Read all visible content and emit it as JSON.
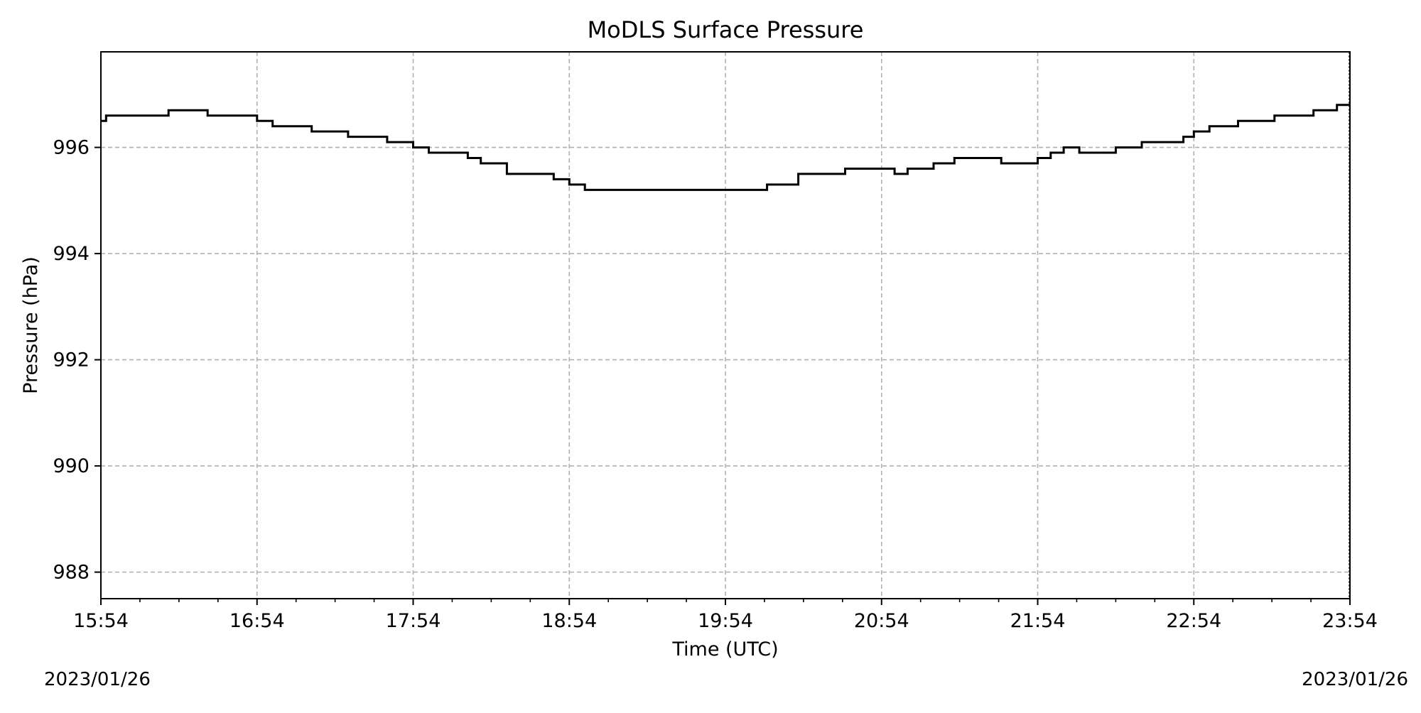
{
  "chart_data": {
    "type": "line",
    "title": "MoDLS Surface Pressure",
    "xlabel": "Time (UTC)",
    "ylabel": "Pressure (hPa)",
    "x_unit": "UTC time of day",
    "xlim": [
      "15:54",
      "23:54"
    ],
    "ylim": [
      987.5,
      997.8
    ],
    "x_ticks": [
      "15:54",
      "16:54",
      "17:54",
      "18:54",
      "19:54",
      "20:54",
      "21:54",
      "22:54",
      "23:54"
    ],
    "y_ticks": [
      988,
      990,
      992,
      994,
      996
    ],
    "grid": true,
    "line_style": "step",
    "line_color": "#000000",
    "grid_color": "#b0b0b0",
    "series": [
      {
        "x": [
          "15:54",
          "15:56",
          "16:05",
          "16:20",
          "16:35",
          "16:54",
          "17:00",
          "17:08",
          "17:15",
          "17:29",
          "17:44",
          "17:54",
          "18:00",
          "18:08",
          "18:15",
          "18:20",
          "18:30",
          "18:48",
          "18:54",
          "19:00",
          "19:15",
          "19:30",
          "19:54",
          "20:10",
          "20:22",
          "20:30",
          "20:40",
          "20:54",
          "20:59",
          "21:04",
          "21:14",
          "21:22",
          "21:30",
          "21:40",
          "21:49",
          "21:54",
          "21:59",
          "22:04",
          "22:10",
          "22:24",
          "22:34",
          "22:50",
          "22:54",
          "23:00",
          "23:11",
          "23:20",
          "23:25",
          "23:35",
          "23:40",
          "23:49",
          "23:54"
        ],
        "y": [
          996.5,
          996.6,
          996.6,
          996.7,
          996.6,
          996.5,
          996.4,
          996.4,
          996.3,
          996.2,
          996.1,
          996.0,
          995.9,
          995.9,
          995.8,
          995.7,
          995.5,
          995.4,
          995.3,
          995.2,
          995.2,
          995.2,
          995.2,
          995.3,
          995.5,
          995.5,
          995.6,
          995.6,
          995.5,
          995.6,
          995.7,
          995.8,
          995.8,
          995.7,
          995.7,
          995.8,
          995.9,
          996.0,
          995.9,
          996.0,
          996.1,
          996.2,
          996.3,
          996.4,
          996.5,
          996.5,
          996.6,
          996.6,
          996.7,
          996.8,
          996.8
        ]
      }
    ],
    "start_date": "2023/01/26",
    "end_date": "2023/01/26"
  }
}
